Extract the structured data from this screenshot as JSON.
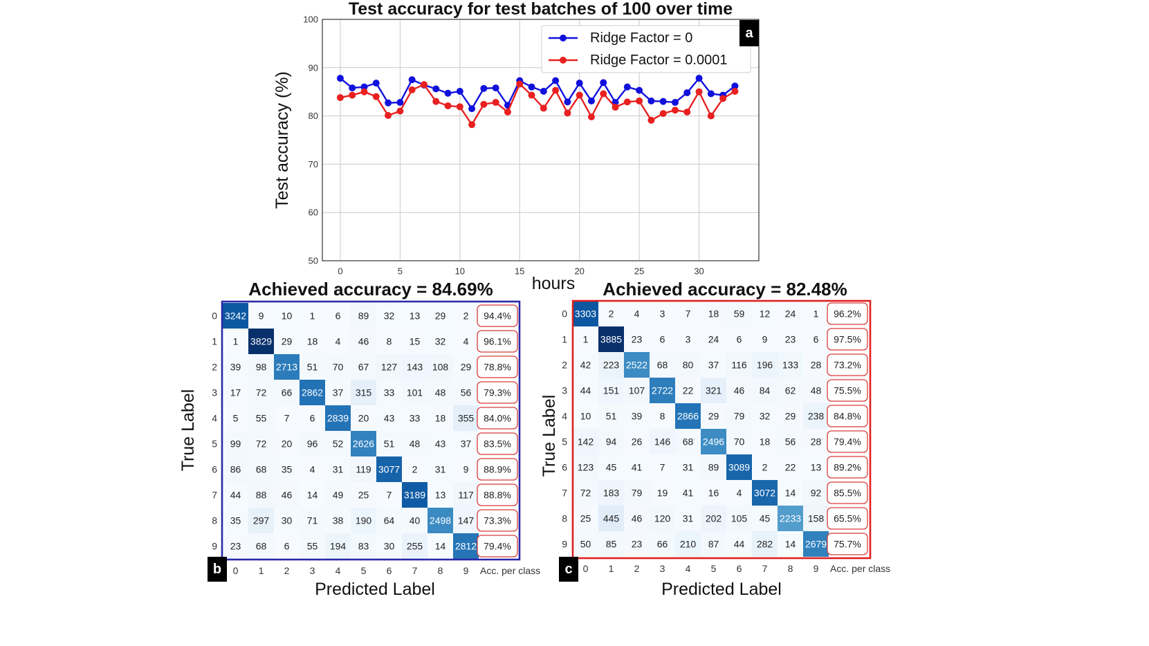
{
  "chart_data": [
    {
      "type": "line",
      "panel_label": "a",
      "title": "Test accuracy for test batches of 100 over time",
      "xlabel": "hours",
      "ylabel": "Test accuracy (%)",
      "xlim": [
        -1.5,
        35
      ],
      "ylim": [
        50,
        100
      ],
      "xticks": [
        0,
        5,
        10,
        15,
        20,
        25,
        30
      ],
      "yticks": [
        50,
        60,
        70,
        80,
        90,
        100
      ],
      "grid": true,
      "legend_position": "top-right",
      "x": [
        0,
        1,
        2,
        3,
        4,
        5,
        6,
        7,
        8,
        9,
        10,
        11,
        12,
        13,
        14,
        15,
        16,
        17,
        18,
        19,
        20,
        21,
        22,
        23,
        24,
        25,
        26,
        27,
        28,
        29,
        30,
        31,
        32,
        33
      ],
      "series": [
        {
          "name": "Ridge Factor = 0",
          "color": "#1010dd",
          "values": [
            87.8,
            85.8,
            86.0,
            86.8,
            82.7,
            82.8,
            87.5,
            86.4,
            85.6,
            84.7,
            85.1,
            81.5,
            85.7,
            85.8,
            82.2,
            87.3,
            86.0,
            85.1,
            87.3,
            82.9,
            86.8,
            83.1,
            86.9,
            82.8,
            86.0,
            85.3,
            83.1,
            83.0,
            82.8,
            84.8,
            87.8,
            84.6,
            84.3,
            86.2
          ]
        },
        {
          "name": "Ridge Factor = 0.0001",
          "color": "#e82020",
          "values": [
            83.8,
            84.3,
            85.0,
            84.0,
            80.1,
            81.0,
            85.4,
            86.5,
            83.0,
            82.1,
            81.9,
            78.2,
            82.4,
            82.8,
            80.8,
            86.6,
            84.3,
            81.6,
            85.3,
            80.6,
            84.3,
            79.8,
            84.6,
            81.8,
            82.9,
            83.1,
            79.1,
            80.5,
            81.2,
            80.8,
            85.0,
            80.0,
            83.6,
            85.1
          ]
        }
      ]
    },
    {
      "type": "heatmap",
      "panel_label": "b",
      "title": "Achieved accuracy = 84.69%",
      "xlabel": "Predicted Label",
      "ylabel": "True Label",
      "border_color": "#2a2aa8",
      "labels": [
        "0",
        "1",
        "2",
        "3",
        "4",
        "5",
        "6",
        "7",
        "8",
        "9"
      ],
      "extra_column_label": "Acc. per class",
      "matrix": [
        [
          3242,
          9,
          10,
          1,
          6,
          89,
          32,
          13,
          29,
          2
        ],
        [
          1,
          3829,
          29,
          18,
          4,
          46,
          8,
          15,
          32,
          4
        ],
        [
          39,
          98,
          2713,
          51,
          70,
          67,
          127,
          143,
          108,
          29
        ],
        [
          17,
          72,
          66,
          2862,
          37,
          315,
          33,
          101,
          48,
          56
        ],
        [
          5,
          55,
          7,
          6,
          2839,
          20,
          43,
          33,
          18,
          355
        ],
        [
          99,
          72,
          20,
          96,
          52,
          2626,
          51,
          48,
          43,
          37
        ],
        [
          86,
          68,
          35,
          4,
          31,
          119,
          3077,
          2,
          31,
          9
        ],
        [
          44,
          88,
          46,
          14,
          49,
          25,
          7,
          3189,
          13,
          117
        ],
        [
          35,
          297,
          30,
          71,
          38,
          190,
          64,
          40,
          2498,
          147
        ],
        [
          23,
          68,
          6,
          55,
          194,
          83,
          30,
          255,
          14,
          2812
        ]
      ],
      "per_class_accuracy": [
        "94.4%",
        "96.1%",
        "78.8%",
        "79.3%",
        "84.0%",
        "83.5%",
        "88.9%",
        "88.8%",
        "73.3%",
        "79.4%"
      ]
    },
    {
      "type": "heatmap",
      "panel_label": "c",
      "title": "Achieved accuracy = 82.48%",
      "xlabel": "Predicted Label",
      "ylabel": "True Label",
      "border_color": "#e02020",
      "labels": [
        "0",
        "1",
        "2",
        "3",
        "4",
        "5",
        "6",
        "7",
        "8",
        "9"
      ],
      "extra_column_label": "Acc. per class",
      "matrix": [
        [
          3303,
          2,
          4,
          3,
          7,
          18,
          59,
          12,
          24,
          1
        ],
        [
          1,
          3885,
          23,
          6,
          3,
          24,
          6,
          9,
          23,
          6
        ],
        [
          42,
          223,
          2522,
          68,
          80,
          37,
          116,
          196,
          133,
          28
        ],
        [
          44,
          151,
          107,
          2722,
          22,
          321,
          46,
          84,
          62,
          48
        ],
        [
          10,
          51,
          39,
          8,
          2866,
          29,
          79,
          32,
          29,
          238
        ],
        [
          142,
          94,
          26,
          146,
          68,
          2496,
          70,
          18,
          56,
          28
        ],
        [
          123,
          45,
          41,
          7,
          31,
          89,
          3089,
          2,
          22,
          13
        ],
        [
          72,
          183,
          79,
          19,
          41,
          16,
          4,
          3072,
          14,
          92
        ],
        [
          25,
          445,
          46,
          120,
          31,
          202,
          105,
          45,
          2233,
          158
        ],
        [
          50,
          85,
          23,
          66,
          210,
          87,
          44,
          282,
          14,
          2679
        ]
      ],
      "per_class_accuracy": [
        "96.2%",
        "97.5%",
        "73.2%",
        "75.5%",
        "84.8%",
        "79.4%",
        "89.2%",
        "85.5%",
        "65.5%",
        "75.7%"
      ]
    }
  ]
}
